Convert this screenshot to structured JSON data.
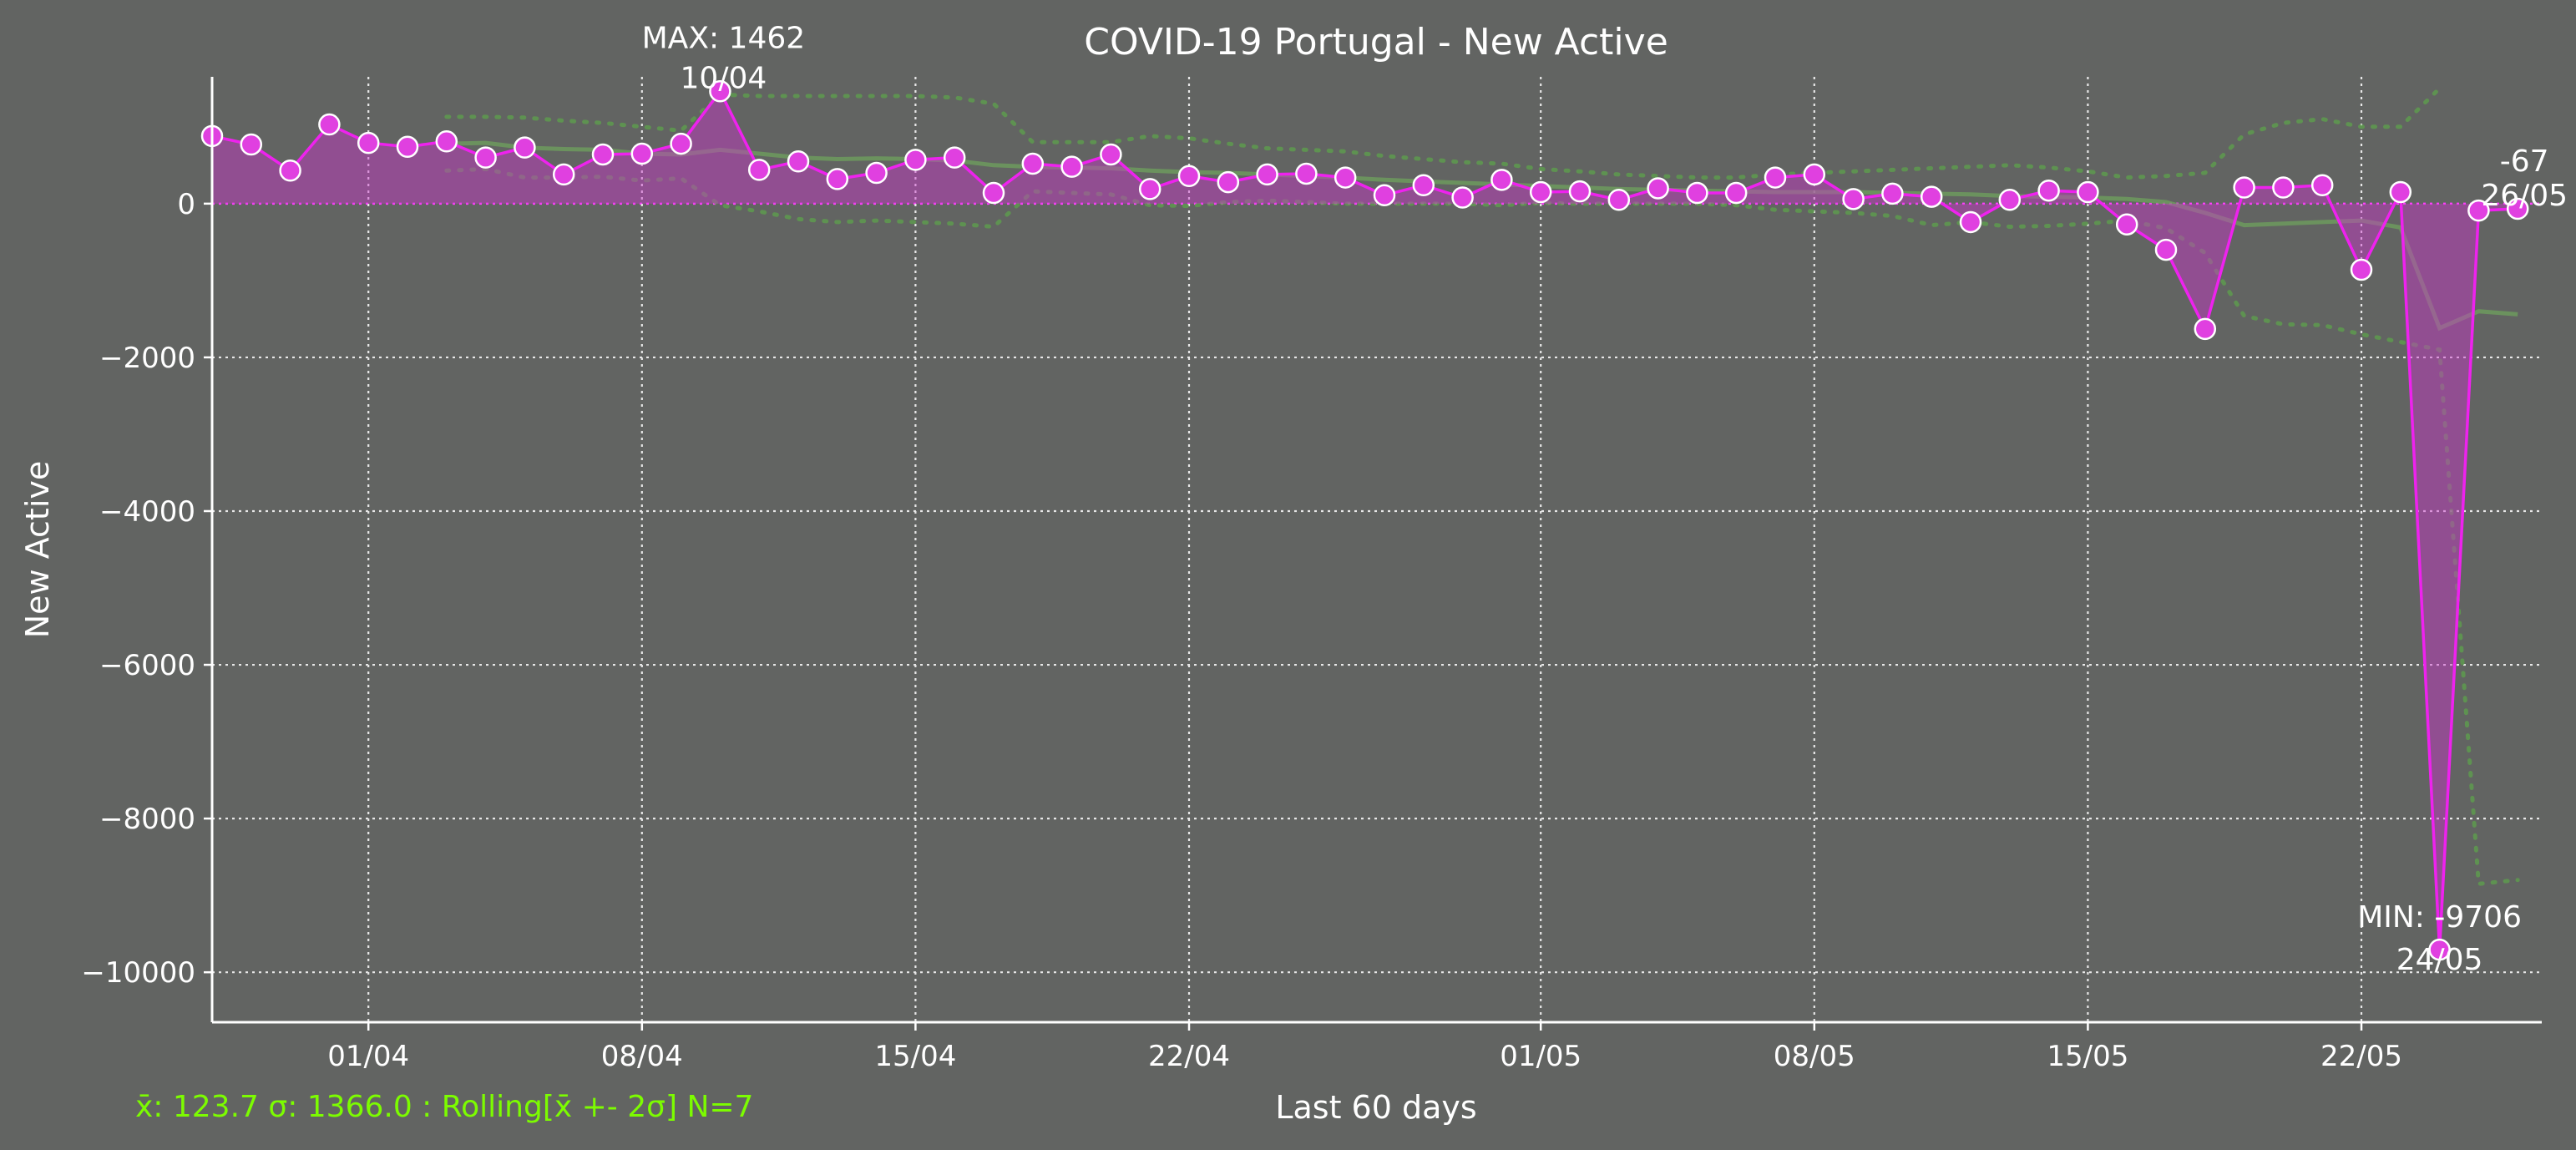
{
  "chart_data": {
    "type": "line",
    "title": "COVID-19 Portugal - New Active",
    "xlabel": "Last 60 days",
    "ylabel": "New Active",
    "x_tick_labels": [
      "01/04",
      "08/04",
      "15/04",
      "22/04",
      "01/05",
      "08/05",
      "15/05",
      "22/05"
    ],
    "y_ticks": [
      0,
      -2000,
      -4000,
      -6000,
      -8000,
      -10000
    ],
    "y_tick_labels": [
      "0",
      "−2000",
      "−4000",
      "−6000",
      "−8000",
      "−10000"
    ],
    "ylim": [
      -10650,
      1650
    ],
    "x_dates": [
      "28/03",
      "29/03",
      "30/03",
      "31/03",
      "01/04",
      "02/04",
      "03/04",
      "04/04",
      "05/04",
      "06/04",
      "07/04",
      "08/04",
      "09/04",
      "10/04",
      "11/04",
      "12/04",
      "13/04",
      "14/04",
      "15/04",
      "16/04",
      "17/04",
      "18/04",
      "19/04",
      "20/04",
      "21/04",
      "22/04",
      "23/04",
      "24/04",
      "25/04",
      "26/04",
      "27/04",
      "28/04",
      "29/04",
      "30/04",
      "01/05",
      "02/05",
      "03/05",
      "04/05",
      "05/05",
      "06/05",
      "07/05",
      "08/05",
      "09/05",
      "10/05",
      "11/05",
      "12/05",
      "13/05",
      "14/05",
      "15/05",
      "16/05",
      "17/05",
      "18/05",
      "19/05",
      "20/05",
      "21/05",
      "22/05",
      "23/05",
      "24/05",
      "25/05",
      "26/05"
    ],
    "series": [
      {
        "values": [
          880,
          770,
          430,
          1030,
          790,
          740,
          810,
          600,
          730,
          380,
          640,
          650,
          780,
          1462,
          440,
          550,
          320,
          400,
          570,
          600,
          140,
          520,
          480,
          640,
          190,
          360,
          280,
          380,
          390,
          340,
          110,
          240,
          80,
          310,
          150,
          160,
          50,
          200,
          140,
          140,
          340,
          380,
          60,
          130,
          90,
          -240,
          50,
          170,
          150,
          -270,
          -600,
          -1630,
          210,
          210,
          240,
          -860,
          150,
          -9706,
          -90,
          -67
        ],
        "color": "#ee22ee"
      }
    ],
    "rolling": {
      "window": 7,
      "mean": [
        null,
        null,
        null,
        null,
        null,
        null,
        780,
        790,
        730,
        710,
        700,
        650,
        640,
        700,
        650,
        600,
        580,
        590,
        580,
        560,
        500,
        480,
        470,
        460,
        430,
        410,
        400,
        380,
        360,
        340,
        310,
        290,
        270,
        250,
        230,
        210,
        190,
        180,
        170,
        160,
        150,
        150,
        150,
        140,
        130,
        120,
        100,
        90,
        80,
        60,
        20,
        -120,
        -280,
        -260,
        -240,
        -220,
        -310,
        -1620,
        -1400,
        -1440
      ],
      "upper": [
        null,
        null,
        null,
        null,
        null,
        null,
        1130,
        1130,
        1120,
        1080,
        1050,
        1000,
        950,
        1420,
        1400,
        1400,
        1400,
        1400,
        1400,
        1380,
        1300,
        800,
        800,
        800,
        880,
        850,
        780,
        720,
        700,
        680,
        620,
        580,
        540,
        520,
        450,
        420,
        380,
        360,
        340,
        340,
        380,
        400,
        420,
        440,
        460,
        480,
        500,
        470,
        420,
        340,
        360,
        400,
        900,
        1050,
        1100,
        1000,
        1000,
        1500,
        null,
        null
      ],
      "lower": [
        null,
        null,
        null,
        null,
        null,
        null,
        430,
        450,
        340,
        340,
        350,
        300,
        330,
        -20,
        -100,
        -200,
        -240,
        -220,
        -240,
        -260,
        -300,
        160,
        140,
        120,
        -20,
        -30,
        20,
        40,
        20,
        0,
        0,
        0,
        0,
        -20,
        10,
        0,
        0,
        0,
        0,
        -20,
        -80,
        -100,
        -120,
        -160,
        -280,
        -240,
        -300,
        -290,
        -260,
        -220,
        -320,
        -640,
        -1460,
        -1570,
        -1580,
        -1700,
        -1800,
        -1900,
        -8850,
        -8800
      ]
    },
    "annotations": {
      "max": {
        "label": "MAX: 1462",
        "date": "10/04",
        "value": 1462
      },
      "min": {
        "label": "MIN: -9706",
        "date": "24/05",
        "value": -9706
      },
      "last": {
        "label": "-67",
        "date": "26/05",
        "value": -67
      }
    },
    "stats_text": "x̄: 123.7 σ: 1366.0 : Rolling[x̄ +- 2σ] N=7",
    "grid": true,
    "legend": "none"
  }
}
